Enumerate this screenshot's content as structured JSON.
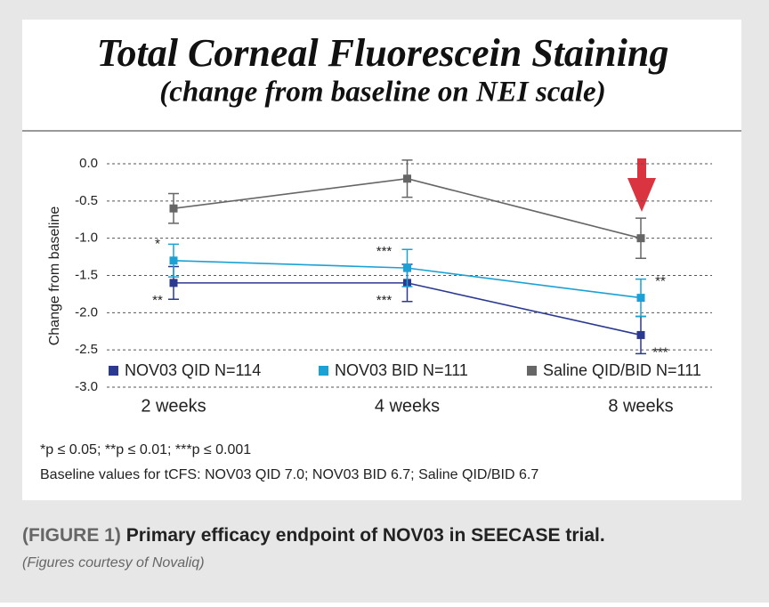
{
  "chart_data": {
    "type": "line",
    "title": "Total Corneal Fluorescein Staining",
    "subtitle": "(change from baseline on NEI scale)",
    "y_label": "Change from baseline",
    "categories": [
      "2 weeks",
      "4 weeks",
      "8 weeks"
    ],
    "series": [
      {
        "name": "NOV03 QID N=114",
        "color": "#2b3990",
        "values": [
          -1.6,
          -1.6,
          -2.3
        ],
        "errors": [
          0.22,
          0.25,
          0.25
        ],
        "annotations": [
          "**",
          "***",
          "***"
        ]
      },
      {
        "name": "NOV03 BID N=111",
        "color": "#1ba1d3",
        "values": [
          -1.3,
          -1.4,
          -1.8
        ],
        "errors": [
          0.22,
          0.25,
          0.25
        ],
        "annotations": [
          "*",
          "***",
          "**"
        ]
      },
      {
        "name": "Saline QID/BID N=111",
        "color": "#666666",
        "values": [
          -0.6,
          -0.2,
          -1.0
        ],
        "errors": [
          0.2,
          0.25,
          0.27
        ]
      }
    ],
    "ylim": [
      -3,
      0
    ],
    "yticks": [
      {
        "value": 0,
        "label": "0.0"
      },
      -0.5,
      {
        "value": -1,
        "label": "-1.0"
      },
      -1.5,
      {
        "value": -2,
        "label": "-2.0"
      },
      -2.5,
      {
        "value": -3,
        "label": "-3.0"
      }
    ],
    "grid": true,
    "footnote": "*p ≤ 0.05; **p ≤ 0.01; ***p ≤ 0.001",
    "baseline_note": "Baseline values for tCFS: NOV03 QID 7.0; NOV03 BID 6.7; Saline QID/BID 6.7"
  },
  "caption": {
    "label": "(FIGURE 1)",
    "text": "Primary efficacy endpoint of NOV03 in SEECASE trial.",
    "credit": "(Figures courtesy of Novaliq)"
  }
}
